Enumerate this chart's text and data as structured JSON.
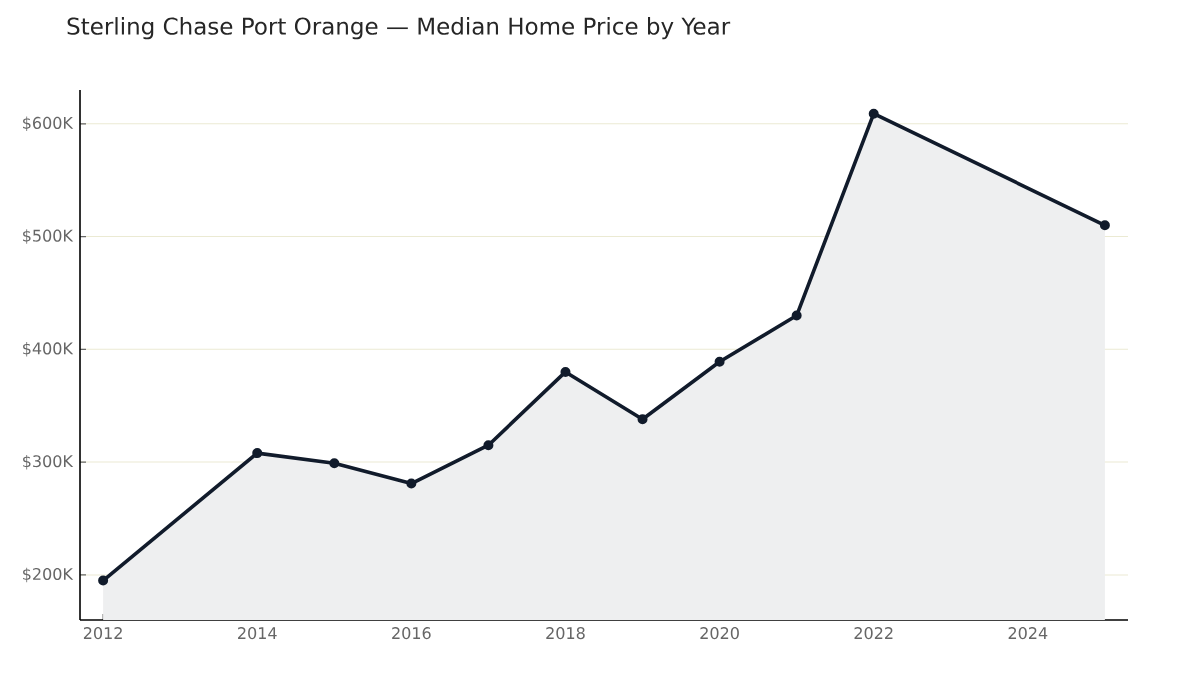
{
  "chart_data": {
    "type": "area",
    "title": "Sterling Chase Port Orange — Median Home Price by Year",
    "x": [
      2012,
      2014,
      2015,
      2016,
      2017,
      2018,
      2019,
      2020,
      2021,
      2022,
      2025
    ],
    "series": [
      {
        "color": "#111b2b",
        "values": [
          195000,
          308000,
          299000,
          281000,
          315000,
          380000,
          338000,
          389000,
          430000,
          609000,
          510000
        ]
      }
    ],
    "xlim": [
      2011.7,
      2025.3
    ],
    "ylim": [
      160000,
      630000
    ],
    "xticks": [
      2012,
      2014,
      2016,
      2018,
      2020,
      2022,
      2024
    ],
    "yticks": [
      {
        "value": 200000,
        "label": "$200K"
      },
      {
        "value": 300000,
        "label": "$300K"
      },
      {
        "value": 400000,
        "label": "$400K"
      },
      {
        "value": 500000,
        "label": "$500K"
      },
      {
        "value": 600000,
        "label": "$600K"
      }
    ],
    "grid": "y",
    "marker": "circle",
    "line_style": "solid"
  }
}
